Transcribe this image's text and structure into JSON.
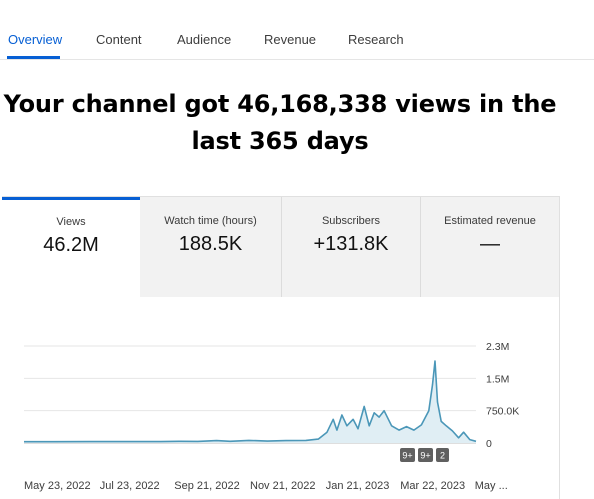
{
  "tabs": [
    {
      "label": "Overview",
      "active": true
    },
    {
      "label": "Content",
      "active": false
    },
    {
      "label": "Audience",
      "active": false
    },
    {
      "label": "Revenue",
      "active": false
    },
    {
      "label": "Research",
      "active": false
    }
  ],
  "headline": {
    "line1": "Your channel got 46,168,338 views in the",
    "line2": "last 365 days"
  },
  "metrics": [
    {
      "label": "Views",
      "value": "46.2M",
      "active": true
    },
    {
      "label": "Watch time (hours)",
      "value": "188.5K",
      "active": false
    },
    {
      "label": "Subscribers",
      "value": "+131.8K",
      "active": false
    },
    {
      "label": "Estimated revenue",
      "value": "—",
      "active": false
    }
  ],
  "colors": {
    "accent": "#065fd4",
    "line": "#4b97b8",
    "fill": "#e0eef4",
    "badge": "#606060"
  },
  "chart_data": {
    "type": "area",
    "title": "",
    "xlabel": "",
    "ylabel": "",
    "y_ticks": [
      "2.3M",
      "1.5M",
      "750.0K",
      "0"
    ],
    "y_tick_values": [
      2250000,
      1500000,
      750000,
      0
    ],
    "ylim": [
      0,
      2250000
    ],
    "x_ticks": [
      "May 23, 2022",
      "Jul 23, 2022",
      "Sep 21, 2022",
      "Nov 21, 2022",
      "Jan 21, 2023",
      "Mar 22, 2023",
      "May ..."
    ],
    "x_tick_dates": [
      "2022-05-23",
      "2022-07-23",
      "2022-09-21",
      "2022-11-21",
      "2023-01-21",
      "2023-03-22",
      "2023-05-21"
    ],
    "xlim": [
      "2022-05-23",
      "2023-05-22"
    ],
    "grid": true,
    "series": [
      {
        "points": [
          [
            "2022-05-23",
            30000
          ],
          [
            "2022-06-15",
            30000
          ],
          [
            "2022-07-15",
            32000
          ],
          [
            "2022-08-15",
            33000
          ],
          [
            "2022-09-10",
            33000
          ],
          [
            "2022-09-25",
            40000
          ],
          [
            "2022-10-10",
            38000
          ],
          [
            "2022-10-25",
            55000
          ],
          [
            "2022-11-05",
            40000
          ],
          [
            "2022-11-20",
            60000
          ],
          [
            "2022-12-05",
            45000
          ],
          [
            "2022-12-20",
            55000
          ],
          [
            "2023-01-05",
            60000
          ],
          [
            "2023-01-15",
            90000
          ],
          [
            "2023-01-22",
            250000
          ],
          [
            "2023-01-27",
            550000
          ],
          [
            "2023-01-30",
            300000
          ],
          [
            "2023-02-03",
            650000
          ],
          [
            "2023-02-07",
            400000
          ],
          [
            "2023-02-12",
            550000
          ],
          [
            "2023-02-16",
            330000
          ],
          [
            "2023-02-21",
            850000
          ],
          [
            "2023-02-25",
            400000
          ],
          [
            "2023-03-01",
            700000
          ],
          [
            "2023-03-05",
            600000
          ],
          [
            "2023-03-09",
            750000
          ],
          [
            "2023-03-15",
            400000
          ],
          [
            "2023-03-21",
            300000
          ],
          [
            "2023-03-27",
            380000
          ],
          [
            "2023-04-02",
            300000
          ],
          [
            "2023-04-08",
            420000
          ],
          [
            "2023-04-14",
            750000
          ],
          [
            "2023-04-17",
            1350000
          ],
          [
            "2023-04-19",
            1900000
          ],
          [
            "2023-04-21",
            950000
          ],
          [
            "2023-04-24",
            500000
          ],
          [
            "2023-04-28",
            400000
          ],
          [
            "2023-05-03",
            280000
          ],
          [
            "2023-05-08",
            120000
          ],
          [
            "2023-05-12",
            250000
          ],
          [
            "2023-05-17",
            80000
          ],
          [
            "2023-05-22",
            40000
          ]
        ]
      }
    ],
    "annotations": [
      "9+",
      "9+",
      "2"
    ]
  }
}
